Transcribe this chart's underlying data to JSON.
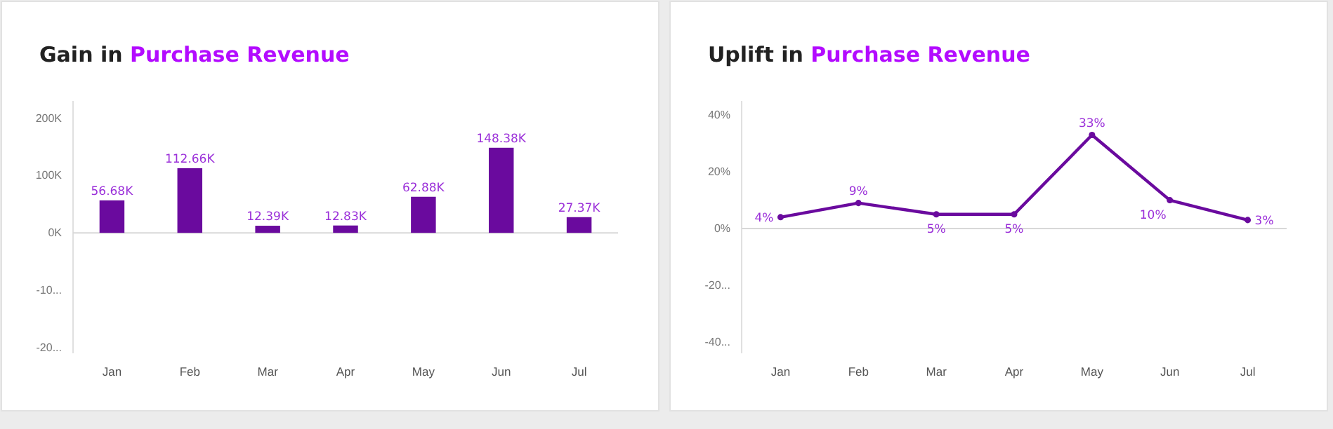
{
  "chart_data": [
    {
      "type": "bar",
      "title": "Gain in Purchase Revenue",
      "categories": [
        "Jan",
        "Feb",
        "Mar",
        "Apr",
        "May",
        "Jun",
        "Jul"
      ],
      "values": [
        56.68,
        112.66,
        12.39,
        12.83,
        62.88,
        148.38,
        27.37
      ],
      "color": "#6a0a9e",
      "value_labels": [
        "56.68K",
        "112.66K",
        "12.39K",
        "12.83K",
        "62.88K",
        "148.38K",
        "27.37K"
      ],
      "ylim": [
        -210,
        230
      ],
      "yticks": [
        {
          "value": 200,
          "label": "200K"
        },
        {
          "value": 100,
          "label": "100K"
        },
        {
          "value": 0,
          "label": "0K"
        },
        {
          "value": -100,
          "label": "-10..."
        },
        {
          "value": -200,
          "label": "-20..."
        }
      ]
    },
    {
      "type": "line",
      "title": "Uplift in Purchase Revenue",
      "categories": [
        "Jan",
        "Feb",
        "Mar",
        "Apr",
        "May",
        "Jun",
        "Jul"
      ],
      "values": [
        4,
        9,
        5,
        5,
        33,
        10,
        3
      ],
      "color": "#6a0a9e",
      "value_labels": [
        "4%",
        "9%",
        "5%",
        "5%",
        "33%",
        "10%",
        "3%"
      ],
      "marker": "circle",
      "ylim": [
        -44,
        45
      ],
      "yticks": [
        {
          "value": 40,
          "label": "40%"
        },
        {
          "value": 20,
          "label": "20%"
        },
        {
          "value": 0,
          "label": "0%"
        },
        {
          "value": -20,
          "label": "-20..."
        },
        {
          "value": -40,
          "label": "-40..."
        }
      ]
    }
  ]
}
